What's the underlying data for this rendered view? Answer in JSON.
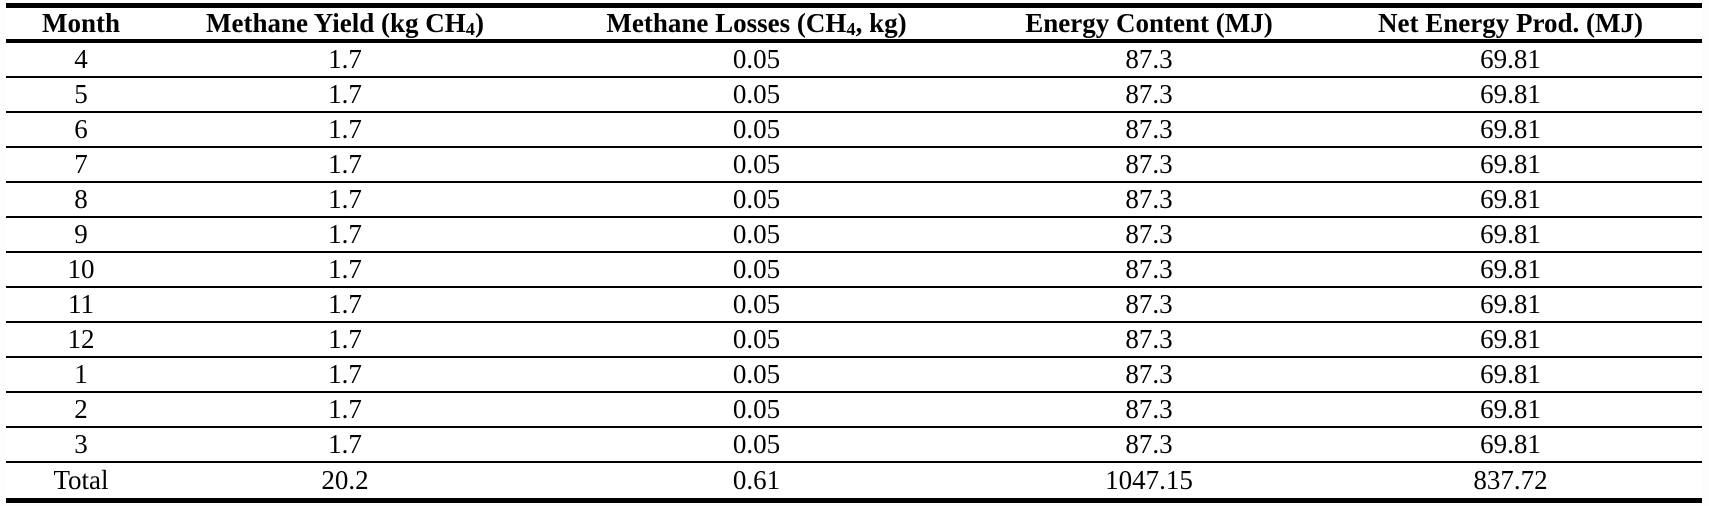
{
  "table": {
    "title": "monthly-methane-energy-table",
    "columns": [
      {
        "pre": "Month",
        "sub": "",
        "post": ""
      },
      {
        "pre": "Methane Yield (kg CH",
        "sub": "4",
        "post": ")"
      },
      {
        "pre": "Methane Losses (CH",
        "sub": "4",
        "post": ", kg)"
      },
      {
        "pre": "Energy Content (MJ)",
        "sub": "",
        "post": ""
      },
      {
        "pre": "Net Energy Prod. (MJ)",
        "sub": "",
        "post": ""
      }
    ],
    "rows": [
      [
        "4",
        "1.7",
        "0.05",
        "87.3",
        "69.81"
      ],
      [
        "5",
        "1.7",
        "0.05",
        "87.3",
        "69.81"
      ],
      [
        "6",
        "1.7",
        "0.05",
        "87.3",
        "69.81"
      ],
      [
        "7",
        "1.7",
        "0.05",
        "87.3",
        "69.81"
      ],
      [
        "8",
        "1.7",
        "0.05",
        "87.3",
        "69.81"
      ],
      [
        "9",
        "1.7",
        "0.05",
        "87.3",
        "69.81"
      ],
      [
        "10",
        "1.7",
        "0.05",
        "87.3",
        "69.81"
      ],
      [
        "11",
        "1.7",
        "0.05",
        "87.3",
        "69.81"
      ],
      [
        "12",
        "1.7",
        "0.05",
        "87.3",
        "69.81"
      ],
      [
        "1",
        "1.7",
        "0.05",
        "87.3",
        "69.81"
      ],
      [
        "2",
        "1.7",
        "0.05",
        "87.3",
        "69.81"
      ],
      [
        "3",
        "1.7",
        "0.05",
        "87.3",
        "69.81"
      ],
      [
        "Total",
        "20.2",
        "0.61",
        "1047.15",
        "837.72"
      ]
    ],
    "colors": {
      "text": "#000000",
      "border": "#000000",
      "background": "#ffffff"
    }
  }
}
